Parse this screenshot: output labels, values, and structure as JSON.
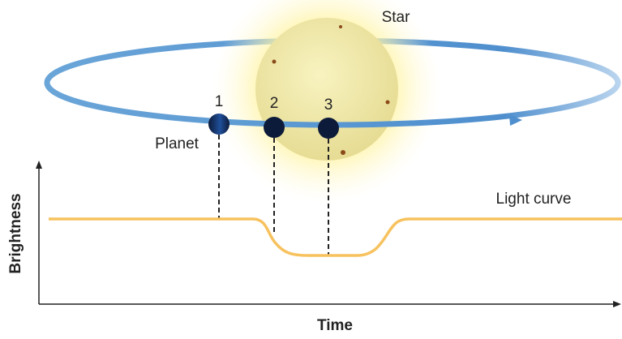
{
  "star": {
    "label": "Star"
  },
  "planet": {
    "label": "Planet"
  },
  "positions": [
    "1",
    "2",
    "3"
  ],
  "light_curve": {
    "label": "Light curve"
  },
  "axes": {
    "y_label": "Brightness",
    "x_label": "Time"
  }
}
